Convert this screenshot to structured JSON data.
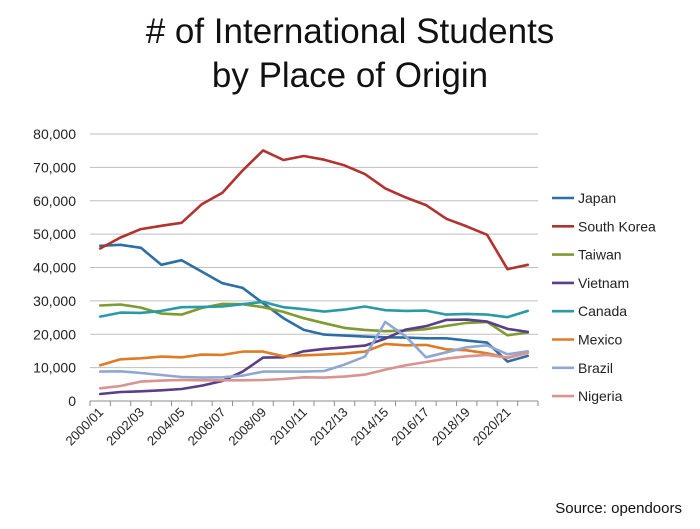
{
  "chart_data": {
    "type": "line",
    "title_lines": [
      "# of International Students",
      "by Place of Origin"
    ],
    "source": "Source: opendoors",
    "ylim": [
      0,
      80000
    ],
    "y_ticks": [
      "0",
      "10,000",
      "20,000",
      "30,000",
      "40,000",
      "50,000",
      "60,000",
      "70,000",
      "80,000"
    ],
    "x": [
      "2000/01",
      "2001/02",
      "2002/03",
      "2003/04",
      "2004/05",
      "2005/06",
      "2006/07",
      "2007/08",
      "2008/09",
      "2009/10",
      "2010/11",
      "2011/12",
      "2012/13",
      "2013/14",
      "2014/15",
      "2015/16",
      "2016/17",
      "2017/18",
      "2018/19",
      "2019/20",
      "2020/21",
      "2021/22"
    ],
    "x_tick_labels": [
      "2000/01",
      "",
      "2002/03",
      "",
      "2004/05",
      "",
      "2006/07",
      "",
      "2008/09",
      "",
      "2010/11",
      "",
      "2012/13",
      "",
      "2014/15",
      "",
      "2016/17",
      "",
      "2018/19",
      "",
      "2020/21",
      ""
    ],
    "grid": "horizontal",
    "legend_position": "right",
    "series": [
      {
        "name": "Japan",
        "color": "#2e6ea6",
        "values": [
          46500,
          46800,
          45900,
          40800,
          42200,
          38700,
          35300,
          33900,
          29300,
          24800,
          21300,
          19900,
          19600,
          19300,
          19100,
          19000,
          18800,
          18800,
          18100,
          17500,
          11800,
          13500
        ]
      },
      {
        "name": "South Korea",
        "color": "#b2322e",
        "values": [
          45700,
          49000,
          51500,
          52500,
          53400,
          59000,
          62400,
          69100,
          75100,
          72200,
          73400,
          72300,
          70600,
          68000,
          63700,
          61000,
          58700,
          54600,
          52300,
          49800,
          39500,
          40800
        ]
      },
      {
        "name": "Taiwan",
        "color": "#7e9b2f",
        "values": [
          28600,
          28900,
          28000,
          26200,
          25900,
          27900,
          29100,
          29000,
          28100,
          26700,
          24800,
          23300,
          21900,
          21300,
          20900,
          21100,
          21500,
          22500,
          23400,
          23700,
          19700,
          20500
        ]
      },
      {
        "name": "Vietnam",
        "color": "#5b3d8a",
        "values": [
          2100,
          2700,
          2900,
          3200,
          3600,
          4600,
          6000,
          8800,
          13000,
          13100,
          14900,
          15600,
          16100,
          16600,
          18700,
          21400,
          22400,
          24300,
          24400,
          23800,
          21600,
          20700
        ]
      },
      {
        "name": "Canada",
        "color": "#2a9aa6",
        "values": [
          25300,
          26500,
          26400,
          27000,
          28100,
          28200,
          28300,
          29000,
          29700,
          28100,
          27500,
          26800,
          27400,
          28300,
          27200,
          27000,
          27100,
          25900,
          26100,
          25900,
          25100,
          27000
        ]
      },
      {
        "name": "Mexico",
        "color": "#e07b25",
        "values": [
          10700,
          12500,
          12800,
          13300,
          13100,
          13900,
          13800,
          14800,
          14800,
          13400,
          13700,
          13900,
          14200,
          14800,
          17100,
          16700,
          16800,
          15500,
          15200,
          14300,
          12900,
          14500
        ]
      },
      {
        "name": "Brazil",
        "color": "#8fa8d2",
        "values": [
          8800,
          8900,
          8400,
          7800,
          7200,
          7000,
          7100,
          7600,
          8800,
          8800,
          8800,
          9000,
          10900,
          13300,
          23700,
          19400,
          13100,
          14600,
          16100,
          16700,
          14000,
          14900
        ]
      },
      {
        "name": "Nigeria",
        "color": "#d99390",
        "values": [
          3800,
          4500,
          5800,
          6100,
          6300,
          6200,
          6200,
          6200,
          6300,
          6600,
          7100,
          7000,
          7300,
          7900,
          9400,
          10700,
          11700,
          12700,
          13400,
          13800,
          13000,
          14400
        ]
      }
    ]
  }
}
